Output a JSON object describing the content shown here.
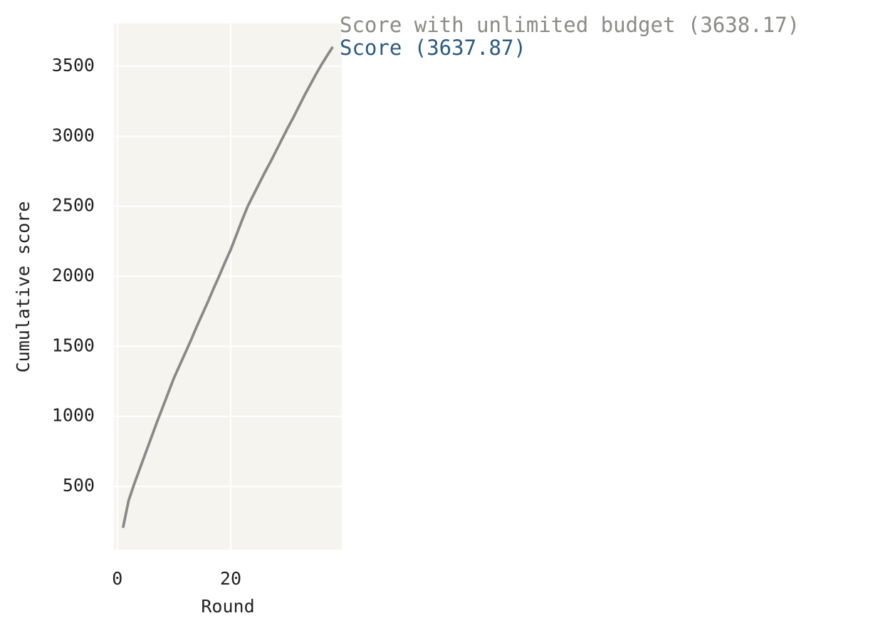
{
  "chart_data": {
    "type": "line",
    "xlabel": "Round",
    "ylabel": "Cumulative score",
    "x": [
      1,
      2,
      3,
      4,
      5,
      6,
      7,
      8,
      9,
      10,
      11,
      12,
      13,
      14,
      15,
      16,
      17,
      18,
      19,
      20,
      21,
      22,
      23,
      24,
      25,
      26,
      27,
      28,
      29,
      30,
      31,
      32,
      33,
      34,
      35,
      36,
      37,
      38
    ],
    "series": [
      {
        "name": "Score",
        "color": "#2b5a82",
        "values": [
          205,
          400,
          520,
          630,
          740,
          850,
          960,
          1065,
          1170,
          1275,
          1365,
          1455,
          1545,
          1640,
          1730,
          1820,
          1915,
          2005,
          2100,
          2190,
          2295,
          2400,
          2500,
          2580,
          2660,
          2740,
          2815,
          2895,
          2975,
          3055,
          3130,
          3210,
          3290,
          3365,
          3440,
          3510,
          3575,
          3637.87
        ]
      },
      {
        "name": "Score with unlimited budget",
        "color": "#8a8a86",
        "values": [
          205,
          400,
          520,
          630,
          740,
          850,
          960,
          1065,
          1170,
          1275,
          1365,
          1455,
          1545,
          1640,
          1730,
          1820,
          1915,
          2005,
          2100,
          2190,
          2295,
          2400,
          2500,
          2580,
          2660,
          2740,
          2815,
          2895,
          2975,
          3055,
          3130,
          3210,
          3290,
          3365,
          3440,
          3510,
          3575,
          3638.17
        ]
      }
    ],
    "annotations": [
      "Score with unlimited budget (3638.17)",
      "Score (3637.87)"
    ],
    "xlim": [
      -0.6,
      39.6
    ],
    "xticks": [
      0,
      20
    ],
    "ylim": [
      48,
      3805
    ],
    "yticks": [
      500,
      1000,
      1500,
      2000,
      2500,
      3000,
      3500
    ],
    "grid": true,
    "background": "#f6f4ef"
  }
}
